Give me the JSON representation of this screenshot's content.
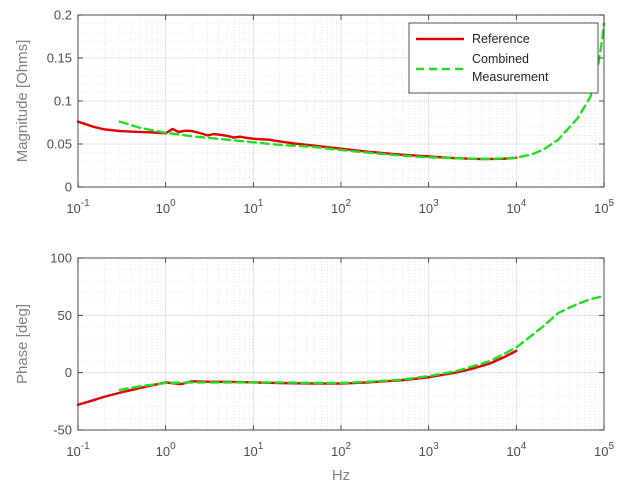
{
  "chart_data": [
    {
      "type": "line",
      "ylabel": "Magnitude [Ohms]",
      "xlabel": "",
      "xscale": "log",
      "xlim": [
        0.1,
        100000
      ],
      "ylim": [
        0,
        0.2
      ],
      "yticks": [
        0,
        0.05,
        0.1,
        0.15,
        0.2
      ],
      "ytick_labels": [
        "0",
        "0.05",
        "0.1",
        "0.15",
        "0.2"
      ],
      "xticks": [
        0.1,
        1,
        10,
        100,
        1000,
        10000,
        100000
      ],
      "xtick_labels": [
        {
          "base": "10",
          "exp": "-1"
        },
        {
          "base": "10",
          "exp": "0"
        },
        {
          "base": "10",
          "exp": "1"
        },
        {
          "base": "10",
          "exp": "2"
        },
        {
          "base": "10",
          "exp": "3"
        },
        {
          "base": "10",
          "exp": "4"
        },
        {
          "base": "10",
          "exp": "5"
        }
      ],
      "grid": true,
      "legend_position": "top-right",
      "series": [
        {
          "name": "Reference",
          "color": "#e00000",
          "style": "solid",
          "x": [
            0.1,
            0.15,
            0.2,
            0.3,
            0.5,
            0.7,
            1.0,
            1.2,
            1.4,
            1.7,
            2.0,
            2.5,
            3.0,
            3.5,
            4.0,
            5.0,
            6.0,
            7.0,
            8.0,
            10,
            15,
            20,
            30,
            50,
            100,
            200,
            500,
            1000,
            2000,
            4000,
            7000,
            10000
          ],
          "y": [
            0.076,
            0.07,
            0.067,
            0.065,
            0.064,
            0.0635,
            0.0625,
            0.0675,
            0.064,
            0.0655,
            0.065,
            0.0625,
            0.06,
            0.0615,
            0.061,
            0.0595,
            0.0575,
            0.0585,
            0.0575,
            0.056,
            0.055,
            0.053,
            0.0505,
            0.048,
            0.0445,
            0.041,
            0.0375,
            0.0355,
            0.0335,
            0.0325,
            0.0328,
            0.034
          ]
        },
        {
          "name": "Combined Measurement",
          "color": "#22dd22",
          "style": "dashed",
          "x": [
            0.3,
            0.5,
            1,
            2,
            5,
            10,
            20,
            50,
            100,
            200,
            500,
            1000,
            2000,
            5000,
            10000,
            15000,
            20000,
            30000,
            50000,
            70000,
            85000,
            95000,
            100000
          ],
          "y": [
            0.076,
            0.069,
            0.063,
            0.059,
            0.055,
            0.052,
            0.049,
            0.0465,
            0.043,
            0.04,
            0.0365,
            0.0345,
            0.0335,
            0.0325,
            0.034,
            0.038,
            0.043,
            0.055,
            0.08,
            0.105,
            0.14,
            0.17,
            0.19
          ]
        }
      ]
    },
    {
      "type": "line",
      "ylabel": "Phase [deg]",
      "xlabel": "Hz",
      "xscale": "log",
      "xlim": [
        0.1,
        100000
      ],
      "ylim": [
        -50,
        100
      ],
      "yticks": [
        -50,
        0,
        50,
        100
      ],
      "ytick_labels": [
        "-50",
        "0",
        "50",
        "100"
      ],
      "xticks": [
        0.1,
        1,
        10,
        100,
        1000,
        10000,
        100000
      ],
      "xtick_labels": [
        {
          "base": "10",
          "exp": "-1"
        },
        {
          "base": "10",
          "exp": "0"
        },
        {
          "base": "10",
          "exp": "1"
        },
        {
          "base": "10",
          "exp": "2"
        },
        {
          "base": "10",
          "exp": "3"
        },
        {
          "base": "10",
          "exp": "4"
        },
        {
          "base": "10",
          "exp": "5"
        }
      ],
      "grid": true,
      "series": [
        {
          "name": "Reference",
          "color": "#e00000",
          "style": "solid",
          "x": [
            0.1,
            0.15,
            0.2,
            0.3,
            0.5,
            0.7,
            1.0,
            1.5,
            2.0,
            3.0,
            5.0,
            10,
            20,
            50,
            100,
            200,
            500,
            1000,
            2000,
            3000,
            5000,
            7000,
            10000
          ],
          "y": [
            -28,
            -24,
            -21,
            -17.5,
            -13.5,
            -11,
            -8.5,
            -10,
            -7.5,
            -8,
            -8,
            -8.5,
            -9,
            -9.5,
            -9.5,
            -8.5,
            -6.5,
            -4,
            0,
            3,
            8,
            13,
            19
          ]
        },
        {
          "name": "Combined Measurement",
          "color": "#22dd22",
          "style": "dashed",
          "x": [
            0.3,
            0.5,
            1,
            2,
            5,
            10,
            20,
            50,
            100,
            200,
            500,
            1000,
            2000,
            5000,
            10000,
            20000,
            30000,
            50000,
            70000,
            100000
          ],
          "y": [
            -15,
            -12,
            -9,
            -8.5,
            -8.5,
            -8.5,
            -8.5,
            -9,
            -9,
            -8,
            -6,
            -3,
            1,
            10,
            22,
            40,
            52,
            60,
            64,
            67
          ]
        }
      ]
    }
  ]
}
